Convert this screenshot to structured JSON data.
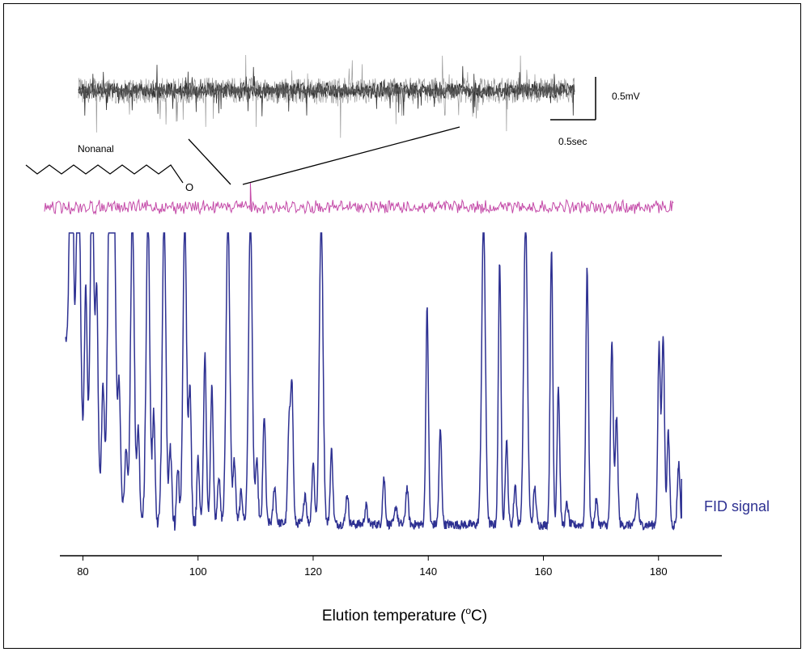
{
  "chart_data": [
    {
      "type": "line",
      "title": "",
      "xlabel": "Elution temperature (°C)",
      "xlabel_parts": {
        "text": "Elution temperature (",
        "sup": "o",
        "unit": "C)"
      },
      "ylabel": "",
      "xlim": [
        76,
        191
      ],
      "x_ticks": [
        80,
        100,
        120,
        140,
        160,
        180
      ],
      "grid": false,
      "series": [
        {
          "name": "FID signal",
          "color": "#2e3192",
          "baseline": 0.05,
          "peaks": [
            {
              "x": 78.0,
              "h": 1.0
            },
            {
              "x": 79.2,
              "h": 1.0
            },
            {
              "x": 80.5,
              "h": 0.55
            },
            {
              "x": 81.6,
              "h": 1.0
            },
            {
              "x": 82.4,
              "h": 0.6
            },
            {
              "x": 83.5,
              "h": 0.35
            },
            {
              "x": 84.6,
              "h": 1.0
            },
            {
              "x": 85.4,
              "h": 1.0
            },
            {
              "x": 86.3,
              "h": 0.4
            },
            {
              "x": 87.5,
              "h": 0.2
            },
            {
              "x": 88.6,
              "h": 1.0
            },
            {
              "x": 89.6,
              "h": 0.3
            },
            {
              "x": 91.3,
              "h": 1.0
            },
            {
              "x": 92.3,
              "h": 0.35
            },
            {
              "x": 94.1,
              "h": 1.0
            },
            {
              "x": 95.2,
              "h": 0.25
            },
            {
              "x": 96.5,
              "h": 0.18
            },
            {
              "x": 97.7,
              "h": 1.0
            },
            {
              "x": 98.6,
              "h": 0.45
            },
            {
              "x": 100.0,
              "h": 0.2
            },
            {
              "x": 101.2,
              "h": 0.55
            },
            {
              "x": 102.4,
              "h": 0.45
            },
            {
              "x": 103.6,
              "h": 0.15
            },
            {
              "x": 105.2,
              "h": 1.0
            },
            {
              "x": 106.3,
              "h": 0.2
            },
            {
              "x": 107.5,
              "h": 0.1
            },
            {
              "x": 109.1,
              "h": 1.0
            },
            {
              "x": 110.2,
              "h": 0.2
            },
            {
              "x": 111.5,
              "h": 0.35
            },
            {
              "x": 113.3,
              "h": 0.12
            },
            {
              "x": 115.8,
              "h": 0.3
            },
            {
              "x": 116.3,
              "h": 0.45
            },
            {
              "x": 118.6,
              "h": 0.1
            },
            {
              "x": 120.0,
              "h": 0.2
            },
            {
              "x": 121.4,
              "h": 1.0
            },
            {
              "x": 123.2,
              "h": 0.24
            },
            {
              "x": 125.9,
              "h": 0.1
            },
            {
              "x": 129.2,
              "h": 0.06
            },
            {
              "x": 132.3,
              "h": 0.15
            },
            {
              "x": 134.4,
              "h": 0.06
            },
            {
              "x": 136.3,
              "h": 0.12
            },
            {
              "x": 139.8,
              "h": 0.7
            },
            {
              "x": 142.1,
              "h": 0.31
            },
            {
              "x": 149.6,
              "h": 1.0
            },
            {
              "x": 152.4,
              "h": 0.86
            },
            {
              "x": 153.6,
              "h": 0.27
            },
            {
              "x": 155.1,
              "h": 0.13
            },
            {
              "x": 156.9,
              "h": 1.0
            },
            {
              "x": 158.5,
              "h": 0.12
            },
            {
              "x": 161.4,
              "h": 0.9
            },
            {
              "x": 162.6,
              "h": 0.45
            },
            {
              "x": 164.1,
              "h": 0.07
            },
            {
              "x": 167.6,
              "h": 0.83
            },
            {
              "x": 169.2,
              "h": 0.08
            },
            {
              "x": 171.9,
              "h": 0.59
            },
            {
              "x": 172.7,
              "h": 0.35
            },
            {
              "x": 176.3,
              "h": 0.1
            },
            {
              "x": 180.1,
              "h": 0.58
            },
            {
              "x": 180.8,
              "h": 0.62
            },
            {
              "x": 181.7,
              "h": 0.3
            },
            {
              "x": 183.5,
              "h": 0.2
            }
          ]
        },
        {
          "name": "",
          "color": "#c44aa8",
          "note_peak_x": 109.1
        }
      ]
    },
    {
      "type": "line",
      "title": "",
      "series": [
        {
          "name": "",
          "color": "#333333"
        }
      ],
      "scale_bar_voltage": "0.5mV",
      "scale_bar_time": "0.5sec"
    }
  ],
  "molecule": {
    "name": "Nonanal",
    "atom": "O"
  },
  "legend": {
    "fid_label": "FID signal"
  }
}
